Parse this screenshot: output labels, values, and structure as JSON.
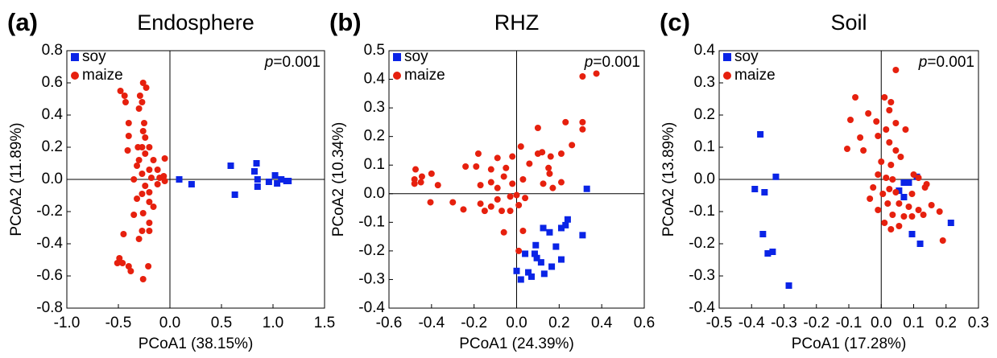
{
  "chart_data": [
    {
      "type": "scatter",
      "panel_label": "(a)",
      "title": "Endosphere",
      "xlabel": "PCoA1 (38.15%)",
      "ylabel": "PCoA2 (11.89%)",
      "annotation": "p=0.001",
      "xlim": [
        -1.0,
        1.5
      ],
      "ylim": [
        -0.8,
        0.8
      ],
      "xticks": [
        {
          "value": -1.0,
          "label": "-1.0"
        },
        -0.5,
        {
          "value": 0,
          "label": "0.0"
        },
        0.5,
        {
          "value": 1.0,
          "label": "1.0"
        },
        1.5
      ],
      "yticks": [
        -0.8,
        -0.6,
        -0.4,
        -0.2,
        {
          "value": 0,
          "label": "0.0"
        },
        0.2,
        0.4,
        0.6,
        0.8
      ],
      "zero_lines": true,
      "legend": "upper-left",
      "series": [
        {
          "name": "soy",
          "color": "#0a24e6",
          "marker": "square",
          "x": [
            0.09,
            0.21,
            0.59,
            0.63,
            0.84,
            0.82,
            0.85,
            0.85,
            0.96,
            1.02,
            1.04,
            1.08,
            1.13,
            1.15
          ],
          "y": [
            0.0,
            -0.03,
            0.085,
            -0.095,
            0.1,
            0.05,
            0.0,
            -0.045,
            -0.015,
            0.025,
            -0.025,
            0.0,
            -0.01,
            -0.01
          ]
        },
        {
          "name": "maize",
          "color": "#e6200e",
          "marker": "circle",
          "x": [
            -0.48,
            -0.44,
            -0.43,
            -0.26,
            -0.23,
            -0.29,
            -0.27,
            -0.3,
            -0.4,
            -0.4,
            -0.25,
            -0.26,
            -0.24,
            -0.27,
            -0.31,
            -0.2,
            -0.41,
            -0.24,
            -0.3,
            -0.16,
            -0.05,
            -0.32,
            -0.2,
            -0.12,
            -0.27,
            -0.18,
            -0.1,
            -0.06,
            -0.35,
            -0.05,
            -0.24,
            -0.12,
            -0.2,
            -0.27,
            -0.32,
            -0.2,
            -0.16,
            -0.26,
            -0.35,
            -0.2,
            -0.27,
            -0.2,
            -0.3,
            -0.45,
            -0.49,
            -0.51,
            -0.46,
            -0.4,
            -0.21,
            -0.38,
            -0.26
          ],
          "y": [
            0.55,
            0.52,
            0.48,
            0.6,
            0.57,
            0.52,
            0.48,
            0.44,
            0.35,
            0.27,
            0.35,
            0.3,
            0.26,
            0.2,
            0.2,
            0.2,
            0.18,
            0.16,
            0.12,
            0.12,
            0.13,
            0.085,
            0.06,
            0.06,
            0.035,
            0.01,
            0.01,
            0.02,
            0.0,
            -0.01,
            -0.04,
            -0.03,
            -0.08,
            -0.09,
            -0.12,
            -0.14,
            -0.17,
            -0.21,
            -0.22,
            -0.27,
            -0.32,
            -0.32,
            -0.37,
            -0.34,
            -0.49,
            -0.52,
            -0.52,
            -0.54,
            -0.54,
            -0.57,
            -0.62
          ]
        }
      ]
    },
    {
      "type": "scatter",
      "panel_label": "(b)",
      "title": "RHZ",
      "xlabel": "PCoA1 (24.39%)",
      "ylabel": "PCoA2 (10.34%)",
      "annotation": "p=0.001",
      "xlim": [
        -0.6,
        0.6
      ],
      "ylim": [
        -0.4,
        0.5
      ],
      "xticks": [
        -0.6,
        -0.4,
        -0.2,
        {
          "value": 0,
          "label": "0.0"
        },
        0.2,
        0.4,
        0.6
      ],
      "yticks": [
        -0.4,
        -0.3,
        -0.2,
        -0.1,
        {
          "value": 0,
          "label": "0.0"
        },
        0.1,
        0.2,
        0.3,
        0.4,
        0.5
      ],
      "zero_lines": true,
      "legend": "upper-left",
      "series": [
        {
          "name": "soy",
          "color": "#0a24e6",
          "marker": "square",
          "x": [
            0.33,
            0.24,
            0.23,
            0.21,
            0.125,
            0.155,
            0.31,
            0.185,
            0.09,
            0.21,
            0.085,
            0.04,
            0.095,
            0.115,
            0.165,
            0.13,
            0.0,
            0.02,
            0.07,
            0.055
          ],
          "y": [
            0.017,
            -0.09,
            -0.11,
            -0.12,
            -0.12,
            -0.135,
            -0.145,
            -0.185,
            -0.18,
            -0.23,
            -0.21,
            -0.21,
            -0.225,
            -0.24,
            -0.255,
            -0.28,
            -0.27,
            -0.3,
            -0.29,
            -0.275
          ]
        },
        {
          "name": "maize",
          "color": "#e6200e",
          "marker": "circle",
          "x": [
            0.375,
            0.31,
            0.31,
            0.31,
            0.23,
            0.1,
            0.26,
            0.21,
            0.12,
            0.16,
            0.1,
            0.02,
            -0.09,
            -0.18,
            -0.02,
            0.06,
            0.15,
            0.155,
            0.125,
            0.17,
            0.21,
            -0.05,
            -0.12,
            -0.19,
            -0.24,
            -0.06,
            -0.12,
            -0.17,
            -0.09,
            -0.02,
            0.03,
            0.0,
            -0.03,
            0.04,
            -0.09,
            -0.12,
            -0.17,
            -0.25,
            -0.15,
            -0.07,
            0.01,
            -0.03,
            -0.06,
            0.03,
            0.01,
            -0.405,
            -0.37,
            -0.4,
            -0.445,
            -0.475,
            -0.48,
            -0.45,
            -0.48,
            -0.3
          ],
          "y": [
            0.42,
            0.41,
            0.25,
            0.225,
            0.25,
            0.23,
            0.17,
            0.14,
            0.145,
            0.13,
            0.14,
            0.165,
            0.125,
            0.14,
            0.13,
            0.105,
            0.09,
            0.07,
            0.035,
            0.02,
            0.04,
            0.09,
            0.085,
            0.095,
            0.095,
            0.06,
            0.04,
            0.03,
            0.02,
            0.035,
            0.05,
            -0.005,
            -0.01,
            -0.015,
            -0.02,
            -0.045,
            -0.035,
            -0.055,
            -0.06,
            -0.06,
            -0.04,
            -0.06,
            -0.135,
            -0.13,
            -0.2,
            -0.03,
            0.03,
            0.07,
            0.06,
            0.085,
            0.05,
            0.04,
            0.035,
            -0.03
          ]
        }
      ]
    },
    {
      "type": "scatter",
      "panel_label": "(c)",
      "title": "Soil",
      "xlabel": "PCoA1 (17.28%)",
      "ylabel": "PCoA2 (13.89%)",
      "annotation": "p=0.001",
      "xlim": [
        -0.5,
        0.3
      ],
      "ylim": [
        -0.4,
        0.4
      ],
      "xticks": [
        -0.5,
        -0.4,
        -0.3,
        -0.2,
        -0.1,
        {
          "value": 0,
          "label": "0.0"
        },
        0.1,
        0.2,
        0.3
      ],
      "yticks": [
        -0.4,
        -0.3,
        -0.2,
        -0.1,
        {
          "value": 0,
          "label": "0.0"
        },
        0.1,
        0.2,
        0.3,
        0.4
      ],
      "zero_lines": true,
      "legend": "upper-left",
      "series": [
        {
          "name": "soy",
          "color": "#0a24e6",
          "marker": "square",
          "x": [
            -0.373,
            -0.39,
            -0.36,
            -0.325,
            -0.365,
            -0.35,
            -0.335,
            -0.285,
            0.07,
            0.085,
            0.11,
            0.055,
            0.07,
            0.095,
            0.12,
            0.215
          ],
          "y": [
            0.14,
            -0.03,
            -0.04,
            0.008,
            -0.17,
            -0.23,
            -0.225,
            -0.33,
            -0.01,
            -0.01,
            0.008,
            -0.035,
            -0.055,
            -0.17,
            -0.2,
            -0.135
          ]
        },
        {
          "name": "maize",
          "color": "#e6200e",
          "marker": "circle",
          "x": [
            0.045,
            -0.08,
            0.01,
            0.03,
            -0.04,
            0.025,
            -0.095,
            -0.015,
            0.045,
            0.015,
            0.075,
            -0.065,
            -0.01,
            0.025,
            -0.105,
            -0.055,
            0.045,
            0.06,
            0.0,
            0.03,
            0.1,
            0.115,
            -0.01,
            0.015,
            0.035,
            0.14,
            -0.025,
            0.025,
            0.005,
            0.045,
            0.095,
            0.135,
            0.02,
            0.055,
            0.085,
            0.115,
            0.155,
            -0.01,
            0.035,
            0.07,
            0.095,
            0.13,
            0.18,
            0.01,
            0.055,
            0.03,
            0.19,
            -0.035
          ],
          "y": [
            0.34,
            0.255,
            0.255,
            0.24,
            0.205,
            0.215,
            0.185,
            0.18,
            0.175,
            0.155,
            0.155,
            0.13,
            0.135,
            0.115,
            0.095,
            0.09,
            0.09,
            0.07,
            0.055,
            0.045,
            0.015,
            0.005,
            0.015,
            0.005,
            0.0,
            -0.015,
            -0.025,
            -0.03,
            -0.045,
            -0.04,
            -0.045,
            -0.025,
            -0.075,
            -0.075,
            -0.085,
            -0.095,
            -0.08,
            -0.095,
            -0.11,
            -0.115,
            -0.115,
            -0.11,
            -0.1,
            -0.135,
            -0.145,
            -0.155,
            -0.19,
            -0.06
          ]
        }
      ]
    }
  ]
}
